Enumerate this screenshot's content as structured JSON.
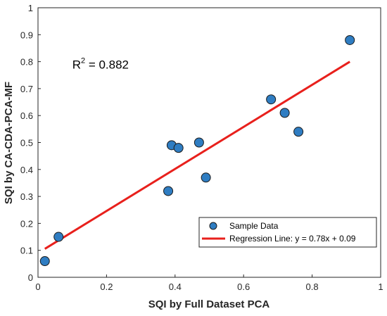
{
  "chart_data": {
    "type": "scatter",
    "xlabel": "SQI by Full Dataset PCA",
    "ylabel": "SQI by CA-CDA-PCA-MF",
    "xlim": [
      0,
      1
    ],
    "ylim": [
      0,
      1
    ],
    "xticks": [
      "0",
      "0.2",
      "0.4",
      "0.6",
      "0.8",
      "1"
    ],
    "yticks": [
      "0",
      "0.1",
      "0.2",
      "0.3",
      "0.4",
      "0.5",
      "0.6",
      "0.7",
      "0.8",
      "0.9",
      "1"
    ],
    "grid": true,
    "annotation": {
      "prefix": "R",
      "sup": "2",
      "suffix": " = 0.882",
      "at": [
        0.1,
        0.79
      ]
    },
    "series": [
      {
        "name": "Sample Data",
        "kind": "scatter",
        "color": "#2f7dc2",
        "points": [
          [
            0.02,
            0.06
          ],
          [
            0.06,
            0.15
          ],
          [
            0.38,
            0.32
          ],
          [
            0.39,
            0.49
          ],
          [
            0.41,
            0.48
          ],
          [
            0.47,
            0.5
          ],
          [
            0.49,
            0.37
          ],
          [
            0.68,
            0.66
          ],
          [
            0.72,
            0.61
          ],
          [
            0.76,
            0.54
          ],
          [
            0.91,
            0.88
          ]
        ]
      },
      {
        "name": "Regression Line: y = 0.78x + 0.09",
        "kind": "line",
        "color": "#e8201c",
        "slope": 0.78,
        "intercept": 0.09,
        "x_range": [
          0.02,
          0.91
        ]
      }
    ],
    "legend_position": "lower-right"
  }
}
